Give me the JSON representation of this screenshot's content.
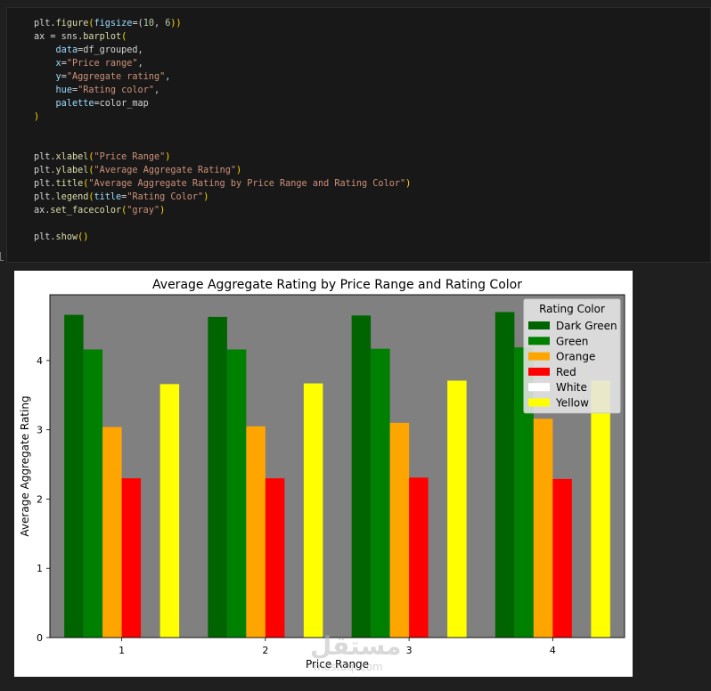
{
  "code_lines": [
    [
      {
        "t": "plt.",
        "c": ""
      },
      {
        "t": "figure",
        "c": "fn"
      },
      {
        "t": "(",
        "c": "br"
      },
      {
        "t": "figsize",
        "c": "par"
      },
      {
        "t": "=(",
        "c": ""
      },
      {
        "t": "10",
        "c": "num"
      },
      {
        "t": ", ",
        "c": ""
      },
      {
        "t": "6",
        "c": "num"
      },
      {
        "t": "))",
        "c": "br"
      }
    ],
    [
      {
        "t": "ax = sns.",
        "c": ""
      },
      {
        "t": "barplot",
        "c": "fn"
      },
      {
        "t": "(",
        "c": "br"
      }
    ],
    [
      {
        "t": "    ",
        "c": ""
      },
      {
        "t": "data",
        "c": "par"
      },
      {
        "t": "=df_grouped,",
        "c": ""
      }
    ],
    [
      {
        "t": "    ",
        "c": ""
      },
      {
        "t": "x",
        "c": "par"
      },
      {
        "t": "=",
        "c": ""
      },
      {
        "t": "\"Price range\"",
        "c": "str"
      },
      {
        "t": ",",
        "c": ""
      }
    ],
    [
      {
        "t": "    ",
        "c": ""
      },
      {
        "t": "y",
        "c": "par"
      },
      {
        "t": "=",
        "c": ""
      },
      {
        "t": "\"Aggregate rating\"",
        "c": "str"
      },
      {
        "t": ",",
        "c": ""
      }
    ],
    [
      {
        "t": "    ",
        "c": ""
      },
      {
        "t": "hue",
        "c": "par"
      },
      {
        "t": "=",
        "c": ""
      },
      {
        "t": "\"Rating color\"",
        "c": "str"
      },
      {
        "t": ",",
        "c": ""
      }
    ],
    [
      {
        "t": "    ",
        "c": ""
      },
      {
        "t": "palette",
        "c": "par"
      },
      {
        "t": "=color_map",
        "c": ""
      }
    ],
    [
      {
        "t": ")",
        "c": "br"
      }
    ],
    [],
    [],
    [
      {
        "t": "plt.",
        "c": ""
      },
      {
        "t": "xlabel",
        "c": "fn"
      },
      {
        "t": "(",
        "c": "br"
      },
      {
        "t": "\"Price Range\"",
        "c": "str"
      },
      {
        "t": ")",
        "c": "br"
      }
    ],
    [
      {
        "t": "plt.",
        "c": ""
      },
      {
        "t": "ylabel",
        "c": "fn"
      },
      {
        "t": "(",
        "c": "br"
      },
      {
        "t": "\"Average Aggregate Rating\"",
        "c": "str"
      },
      {
        "t": ")",
        "c": "br"
      }
    ],
    [
      {
        "t": "plt.",
        "c": ""
      },
      {
        "t": "title",
        "c": "fn"
      },
      {
        "t": "(",
        "c": "br"
      },
      {
        "t": "\"Average Aggregate Rating by Price Range and Rating Color\"",
        "c": "str"
      },
      {
        "t": ")",
        "c": "br"
      }
    ],
    [
      {
        "t": "plt.",
        "c": ""
      },
      {
        "t": "legend",
        "c": "fn"
      },
      {
        "t": "(",
        "c": "br"
      },
      {
        "t": "title",
        "c": "par"
      },
      {
        "t": "=",
        "c": ""
      },
      {
        "t": "\"Rating Color\"",
        "c": "str"
      },
      {
        "t": ")",
        "c": "br"
      }
    ],
    [
      {
        "t": "ax.",
        "c": ""
      },
      {
        "t": "set_facecolor",
        "c": "fn"
      },
      {
        "t": "(",
        "c": "br"
      },
      {
        "t": "\"gray\"",
        "c": "str"
      },
      {
        "t": ")",
        "c": "br"
      }
    ],
    [],
    [
      {
        "t": "plt.",
        "c": ""
      },
      {
        "t": "show",
        "c": "fn"
      },
      {
        "t": "()",
        "c": "br"
      }
    ]
  ],
  "watermark": {
    "text": "مستقل",
    "sub": "mostaql.com"
  },
  "chart_data": {
    "type": "bar",
    "title": "Average Aggregate Rating by Price Range and Rating Color",
    "xlabel": "Price Range",
    "ylabel": "Average Aggregate Rating",
    "categories": [
      "1",
      "2",
      "3",
      "4"
    ],
    "ylim": [
      0,
      4.95
    ],
    "yticks": [
      0,
      1,
      2,
      3,
      4
    ],
    "facecolor": "#808080",
    "legend_title": "Rating Color",
    "legend_position": "top-right",
    "series": [
      {
        "name": "Dark Green",
        "color": "#006400",
        "values": [
          4.66,
          4.63,
          4.65,
          4.7
        ]
      },
      {
        "name": "Green",
        "color": "#008000",
        "values": [
          4.16,
          4.16,
          4.17,
          4.19
        ]
      },
      {
        "name": "Orange",
        "color": "#ffa500",
        "values": [
          3.04,
          3.05,
          3.1,
          3.16
        ]
      },
      {
        "name": "Red",
        "color": "#ff0000",
        "values": [
          2.3,
          2.3,
          2.31,
          2.29
        ]
      },
      {
        "name": "White",
        "color": "#ffffff",
        "values": [
          0,
          0,
          0,
          0
        ]
      },
      {
        "name": "Yellow",
        "color": "#ffff00",
        "values": [
          3.66,
          3.67,
          3.71,
          3.71
        ]
      }
    ]
  }
}
